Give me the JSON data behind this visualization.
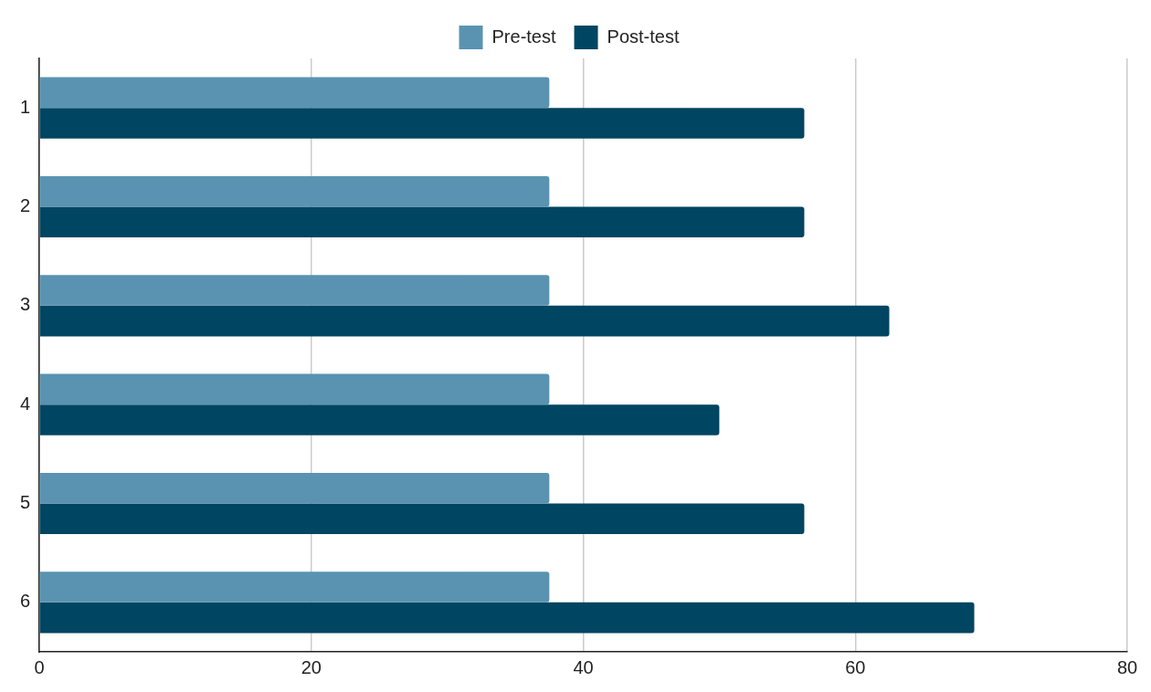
{
  "chart_data": {
    "type": "bar",
    "orientation": "horizontal",
    "categories": [
      "1",
      "2",
      "3",
      "4",
      "5",
      "6"
    ],
    "series": [
      {
        "name": "Pre-test",
        "color": "#5a93b1",
        "values": [
          37.5,
          37.5,
          37.5,
          37.5,
          37.5,
          37.5
        ]
      },
      {
        "name": "Post-test",
        "color": "#004561",
        "values": [
          56.25,
          56.25,
          62.5,
          50,
          56.25,
          68.75
        ]
      }
    ],
    "xlim": [
      0,
      80
    ],
    "xticks": [
      0,
      20,
      40,
      60,
      80
    ],
    "grid": "x",
    "legend": "top"
  }
}
